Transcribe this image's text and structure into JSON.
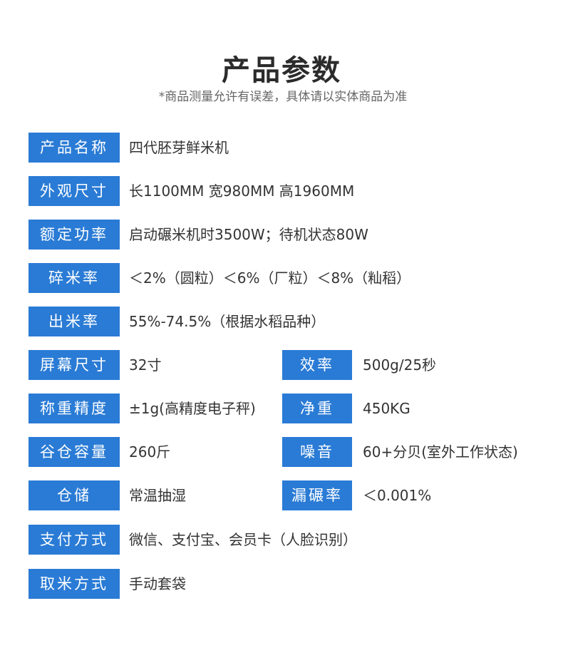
{
  "title": "产品参数",
  "subtitle": "*商品测量允许有误差，具体请以实体商品为准",
  "accent_color": "#2a7bd5",
  "rows": [
    {
      "label": "产品名称",
      "value": "四代胚芽鲜米机"
    },
    {
      "label": "外观尺寸",
      "value": "长1100MM 宽980MM 高1960MM"
    },
    {
      "label": "额定功率",
      "value": "启动碾米机时3500W；待机状态80W"
    },
    {
      "label": "碎米率",
      "value": "＜2%（圆粒）＜6%（厂粒）＜8%（籼稻）"
    },
    {
      "label": "出米率",
      "value": "55%-74.5%（根据水稻品种）"
    },
    {
      "label": "屏幕尺寸",
      "value": "32寸",
      "label2": "效率",
      "value2": "500g/25秒"
    },
    {
      "label": "称重精度",
      "value": "±1g(高精度电子秤)",
      "label2": "净重",
      "value2": "450KG"
    },
    {
      "label": "谷仓容量",
      "value": "260斤",
      "label2": "噪音",
      "value2": "60+分贝(室外工作状态)"
    },
    {
      "label": "仓储",
      "value": "常温抽湿",
      "label2": "漏碾率",
      "value2": "＜0.001%"
    },
    {
      "label": "支付方式",
      "value": "微信、支付宝、会员卡（人脸识别）"
    },
    {
      "label": "取米方式",
      "value": "手动套袋"
    }
  ]
}
